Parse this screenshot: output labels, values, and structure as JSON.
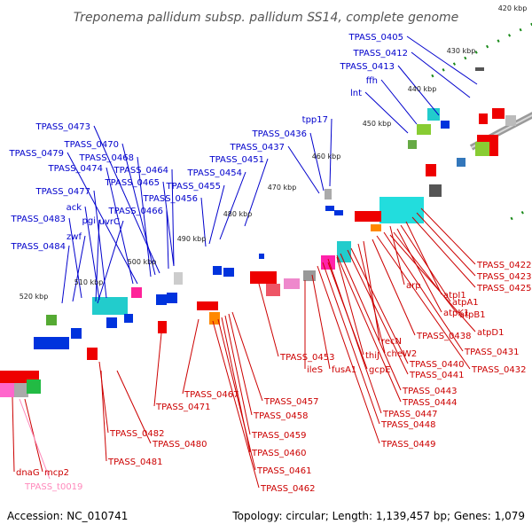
{
  "title": "Treponema pallidum subsp. pallidum SS14, complete genome",
  "footer": {
    "accession": "Accession: NC_010741",
    "summary": "Topology: circular; Length: 1,139,457 bp; Genes: 1,079"
  },
  "kbp_ticks": [
    {
      "label": "420 kbp"
    },
    {
      "label": "430 kbp"
    },
    {
      "label": "440 kbp"
    },
    {
      "label": "450 kbp"
    },
    {
      "label": "460 kbp"
    },
    {
      "label": "470 kbp"
    },
    {
      "label": "480 kbp"
    },
    {
      "label": "490 kbp"
    },
    {
      "label": "500 kbp"
    },
    {
      "label": "510 kbp"
    },
    {
      "label": "520 kbp"
    }
  ],
  "colors": {
    "forward_label": "#0000cc",
    "reverse_label": "#cc0000",
    "rna_label": "#ff88bb",
    "forward_gene": "#0033dd",
    "reverse_gene": "#ee0000",
    "backbone": "#777777",
    "tick": "#1a8a1a"
  },
  "labels_forward": [
    {
      "text": "TPASS_0405"
    },
    {
      "text": "TPASS_0412"
    },
    {
      "text": "TPASS_0413"
    },
    {
      "text": "ffh"
    },
    {
      "text": "lnt"
    },
    {
      "text": "tpp17"
    },
    {
      "text": "TPASS_0436"
    },
    {
      "text": "TPASS_0437"
    },
    {
      "text": "TPASS_0451"
    },
    {
      "text": "TPASS_0454"
    },
    {
      "text": "TPASS_0455"
    },
    {
      "text": "TPASS_0456"
    },
    {
      "text": "TPASS_0473"
    },
    {
      "text": "TPASS_0470"
    },
    {
      "text": "TPASS_0468"
    },
    {
      "text": "TPASS_0479"
    },
    {
      "text": "TPASS_0474"
    },
    {
      "text": "TPASS_0465"
    },
    {
      "text": "TPASS_0464"
    },
    {
      "text": "TPASS_0477"
    },
    {
      "text": "ack"
    },
    {
      "text": "pgi"
    },
    {
      "text": "uvrC"
    },
    {
      "text": "TPASS_0466"
    },
    {
      "text": "TPASS_0483"
    },
    {
      "text": "zwf"
    },
    {
      "text": "TPASS_0484"
    }
  ],
  "labels_reverse": [
    {
      "text": "TPASS_0422"
    },
    {
      "text": "TPASS_0423"
    },
    {
      "text": "TPASS_0425"
    },
    {
      "text": "arp"
    },
    {
      "text": "atpI1"
    },
    {
      "text": "atpA1"
    },
    {
      "text": "atpK1"
    },
    {
      "text": "atpB1"
    },
    {
      "text": "atpD1"
    },
    {
      "text": "TPASS_0438"
    },
    {
      "text": "recN"
    },
    {
      "text": "cheW2"
    },
    {
      "text": "TPASS_0431"
    },
    {
      "text": "TPASS_0440"
    },
    {
      "text": "TPASS_0432"
    },
    {
      "text": "TPASS_0441"
    },
    {
      "text": "thiJ"
    },
    {
      "text": "gcpE"
    },
    {
      "text": "TPASS_0453"
    },
    {
      "text": "ileS"
    },
    {
      "text": "fusA1"
    },
    {
      "text": "TPASS_0443"
    },
    {
      "text": "TPASS_0444"
    },
    {
      "text": "TPASS_0447"
    },
    {
      "text": "TPASS_0448"
    },
    {
      "text": "TPASS_0449"
    },
    {
      "text": "TPASS_0467"
    },
    {
      "text": "TPASS_0457"
    },
    {
      "text": "TPASS_0471"
    },
    {
      "text": "TPASS_0458"
    },
    {
      "text": "TPASS_0459"
    },
    {
      "text": "TPASS_0460"
    },
    {
      "text": "TPASS_0461"
    },
    {
      "text": "TPASS_0462"
    },
    {
      "text": "TPASS_0482"
    },
    {
      "text": "TPASS_0480"
    },
    {
      "text": "TPASS_0481"
    },
    {
      "text": "dnaG"
    },
    {
      "text": "mcp2"
    }
  ],
  "labels_rna": [
    {
      "text": "TPASS_t0019"
    }
  ]
}
